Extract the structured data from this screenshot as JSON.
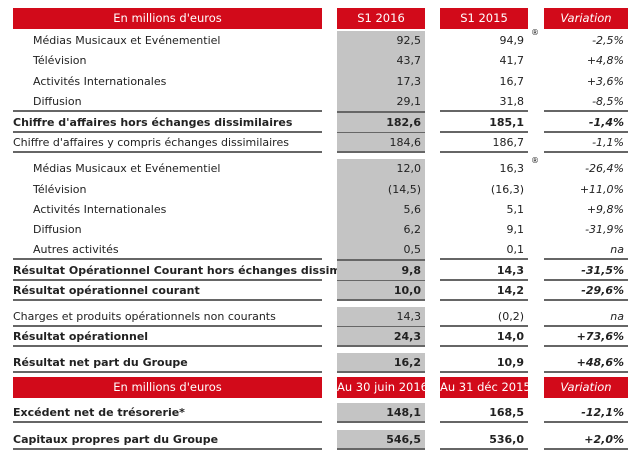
{
  "colors": {
    "header_red": "#d20a1a",
    "highlight_gray": "#c4c4c4"
  },
  "header1": {
    "label": "En millions d'euros",
    "col1": "S1 2016",
    "col2": "S1 2015",
    "col3": "Variation"
  },
  "header2": {
    "label": "En millions d'euros",
    "col1": "Au 30 juin 2016",
    "col2": "Au 31 déc 2015",
    "col3": "Variation"
  },
  "rows": [
    {
      "label": "Médias Musicaux et Evénementiel",
      "s1_2016": "92,5",
      "s1_2015": "94,9",
      "variation": "-2,5%",
      "note": "®"
    },
    {
      "label": "Télévision",
      "s1_2016": "43,7",
      "s1_2015": "41,7",
      "variation": "+4,8%"
    },
    {
      "label": "Activités Internationales",
      "s1_2016": "17,3",
      "s1_2015": "16,7",
      "variation": "+3,6%"
    },
    {
      "label": "Diffusion",
      "s1_2016": "29,1",
      "s1_2015": "31,8",
      "variation": "-8,5%"
    },
    {
      "label": "Chiffre d'affaires hors échanges dissimilaires",
      "s1_2016": "182,6",
      "s1_2015": "185,1",
      "variation": "-1,4%"
    },
    {
      "label": "Chiffre d'affaires y compris échanges dissimilaires",
      "s1_2016": "184,6",
      "s1_2015": "186,7",
      "variation": "-1,1%"
    },
    {
      "label": "Médias Musicaux et Evénementiel",
      "s1_2016": "12,0",
      "s1_2015": "16,3",
      "variation": "-26,4%",
      "note": "®"
    },
    {
      "label": "Télévision",
      "s1_2016": "(14,5)",
      "s1_2015": "(16,3)",
      "variation": "+11,0%"
    },
    {
      "label": "Activités Internationales",
      "s1_2016": "5,6",
      "s1_2015": "5,1",
      "variation": "+9,8%"
    },
    {
      "label": "Diffusion",
      "s1_2016": "6,2",
      "s1_2015": "9,1",
      "variation": "-31,9%"
    },
    {
      "label": "Autres activités",
      "s1_2016": "0,5",
      "s1_2015": "0,1",
      "variation": "na"
    },
    {
      "label": "Résultat Opérationnel Courant hors échanges dissimilaires",
      "s1_2016": "9,8",
      "s1_2015": "14,3",
      "variation": "-31,5%"
    },
    {
      "label": "Résultat opérationnel courant",
      "s1_2016": "10,0",
      "s1_2015": "14,2",
      "variation": "-29,6%"
    },
    {
      "label": "Charges et produits opérationnels non courants",
      "s1_2016": "14,3",
      "s1_2015": "(0,2)",
      "variation": "na"
    },
    {
      "label": "Résultat opérationnel",
      "s1_2016": "24,3",
      "s1_2015": "14,0",
      "variation": "+73,6%"
    },
    {
      "label": "Résultat net part du Groupe",
      "s1_2016": "16,2",
      "s1_2015": "10,9",
      "variation": "+48,6%"
    }
  ],
  "balance_rows": [
    {
      "label": "Excédent net de trésorerie*",
      "col1": "148,1",
      "col2": "168,5",
      "variation": "-12,1%"
    },
    {
      "label": "Capitaux propres part du Groupe",
      "col1": "546,5",
      "col2": "536,0",
      "variation": "+2,0%"
    }
  ]
}
